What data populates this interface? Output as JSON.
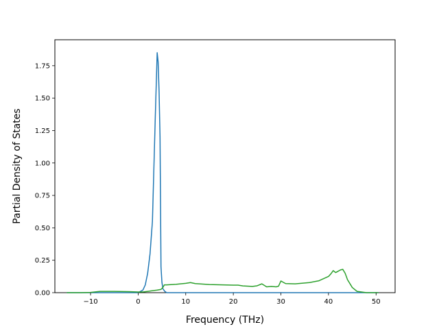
{
  "chart_data": {
    "type": "line",
    "title": "",
    "xlabel": "Frequency (THz)",
    "ylabel": "Partial Density of States",
    "xlim": [
      -17.5,
      54.0
    ],
    "ylim": [
      0.0,
      1.95
    ],
    "xticks": [
      -10,
      0,
      10,
      20,
      30,
      40,
      50
    ],
    "xtick_labels": [
      "−10",
      "0",
      "10",
      "20",
      "30",
      "40",
      "50"
    ],
    "yticks": [
      0.0,
      0.25,
      0.5,
      0.75,
      1.0,
      1.25,
      1.5,
      1.75
    ],
    "ytick_labels": [
      "0.00",
      "0.25",
      "0.50",
      "0.75",
      "1.00",
      "1.25",
      "1.50",
      "1.75"
    ],
    "grid": false,
    "legend": "none",
    "series": [
      {
        "color": "#1f77b4",
        "x": [
          -15,
          -5,
          0,
          1,
          1.5,
          2,
          2.5,
          3,
          3.3,
          3.6,
          3.8,
          4.0,
          4.2,
          4.4,
          4.6,
          4.8,
          5.0,
          5.2,
          5.6,
          6,
          10,
          20,
          30,
          40,
          45,
          50.5
        ],
        "y": [
          0.0,
          0.0,
          0.0,
          0.02,
          0.06,
          0.15,
          0.3,
          0.55,
          0.95,
          1.35,
          1.6,
          1.85,
          1.78,
          1.55,
          1.2,
          0.2,
          0.08,
          0.03,
          0.01,
          0.0,
          0.0,
          0.0,
          0.0,
          0.0,
          0.0,
          0.0
        ]
      },
      {
        "color": "#2ca02c",
        "x": [
          -15,
          -12,
          -10,
          -8,
          -5,
          -2,
          0,
          1,
          2,
          3,
          4,
          4.8,
          5.2,
          5.5,
          6,
          8,
          10,
          11,
          12,
          15,
          20,
          21,
          22,
          24,
          25,
          26,
          27,
          28,
          29,
          29.5,
          30,
          30.5,
          31,
          33,
          36,
          38,
          40,
          40.5,
          41,
          41.5,
          42,
          42.5,
          43,
          43.5,
          44,
          45,
          46,
          48,
          50.5
        ],
        "y": [
          0.0,
          0.0,
          0.002,
          0.01,
          0.01,
          0.008,
          0.005,
          0.005,
          0.01,
          0.015,
          0.02,
          0.025,
          0.04,
          0.06,
          0.06,
          0.065,
          0.072,
          0.078,
          0.07,
          0.063,
          0.058,
          0.058,
          0.052,
          0.048,
          0.053,
          0.068,
          0.045,
          0.048,
          0.045,
          0.05,
          0.09,
          0.08,
          0.07,
          0.068,
          0.078,
          0.092,
          0.125,
          0.145,
          0.17,
          0.155,
          0.165,
          0.175,
          0.18,
          0.15,
          0.1,
          0.04,
          0.01,
          0.0,
          0.0
        ]
      }
    ]
  }
}
